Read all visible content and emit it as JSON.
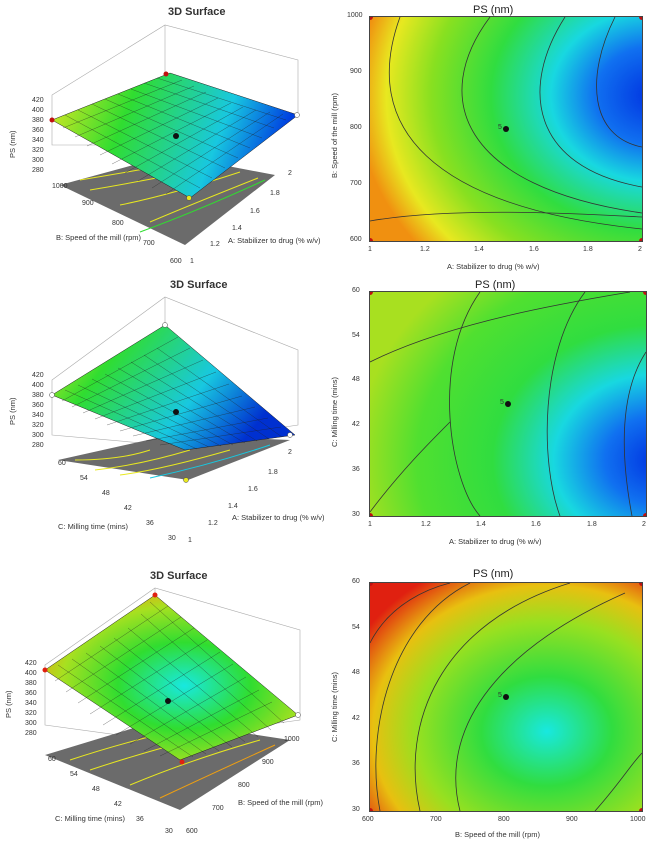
{
  "colors": {
    "blue": "#0040e0",
    "cyan": "#18e8e0",
    "green": "#30dd30",
    "yellow": "#e8e820",
    "orange": "#f08a10",
    "red": "#e02010",
    "floor": "#6b6b6b"
  },
  "chart_data": [
    {
      "type": "surface",
      "title": "3D Surface",
      "zlabel": "PS (nm)",
      "xlabel": "A: Stabilizer to drug  (% w/v)",
      "ylabel": "B: Speed of the mill (rpm)",
      "z_ticks": [
        "420",
        "400",
        "380",
        "360",
        "340",
        "320",
        "300",
        "280"
      ],
      "x_ticks": [
        "1",
        "1.2",
        "1.4",
        "1.6",
        "1.8",
        "2"
      ],
      "y_ticks": [
        "600",
        "700",
        "800",
        "900",
        "1000"
      ]
    },
    {
      "type": "contour",
      "title": "PS (nm)",
      "xlabel": "A: Stabilizer to drug  (% w/v)",
      "ylabel": "B: Speed of the mill (rpm)",
      "x_ticks": [
        "1",
        "1.2",
        "1.4",
        "1.6",
        "1.8",
        "2"
      ],
      "y_ticks": [
        "600",
        "700",
        "800",
        "900",
        "1000"
      ],
      "center_label": "5"
    },
    {
      "type": "surface",
      "title": "3D Surface",
      "zlabel": "PS (nm)",
      "xlabel": "A: Stabilizer to drug  (% w/v)",
      "ylabel": "C: Milling time (mins)",
      "z_ticks": [
        "420",
        "400",
        "380",
        "360",
        "340",
        "320",
        "300",
        "280"
      ],
      "x_ticks": [
        "1",
        "1.2",
        "1.4",
        "1.6",
        "1.8",
        "2"
      ],
      "y_ticks": [
        "30",
        "36",
        "42",
        "48",
        "54",
        "60"
      ]
    },
    {
      "type": "contour",
      "title": "PS (nm)",
      "xlabel": "A: Stabilizer to drug  (% w/v)",
      "ylabel": "C: Milling time (mins)",
      "x_ticks": [
        "1",
        "1.2",
        "1.4",
        "1.6",
        "1.8",
        "2"
      ],
      "y_ticks": [
        "30",
        "36",
        "42",
        "48",
        "54",
        "60"
      ],
      "center_label": "5"
    },
    {
      "type": "surface",
      "title": "3D Surface",
      "zlabel": "PS (nm)",
      "xlabel": "B: Speed of the mill (rpm)",
      "ylabel": "C: Milling time (mins)",
      "z_ticks": [
        "420",
        "400",
        "380",
        "360",
        "340",
        "320",
        "300",
        "280"
      ],
      "x_ticks": [
        "600",
        "700",
        "800",
        "900",
        "1000"
      ],
      "y_ticks": [
        "30",
        "36",
        "42",
        "48",
        "54",
        "60"
      ]
    },
    {
      "type": "contour",
      "title": "PS (nm)",
      "xlabel": "B: Speed of the mill (rpm)",
      "ylabel": "C: Milling time (mins)",
      "x_ticks": [
        "600",
        "700",
        "800",
        "900",
        "1000"
      ],
      "y_ticks": [
        "30",
        "36",
        "42",
        "48",
        "54",
        "60"
      ],
      "center_label": "5"
    }
  ]
}
